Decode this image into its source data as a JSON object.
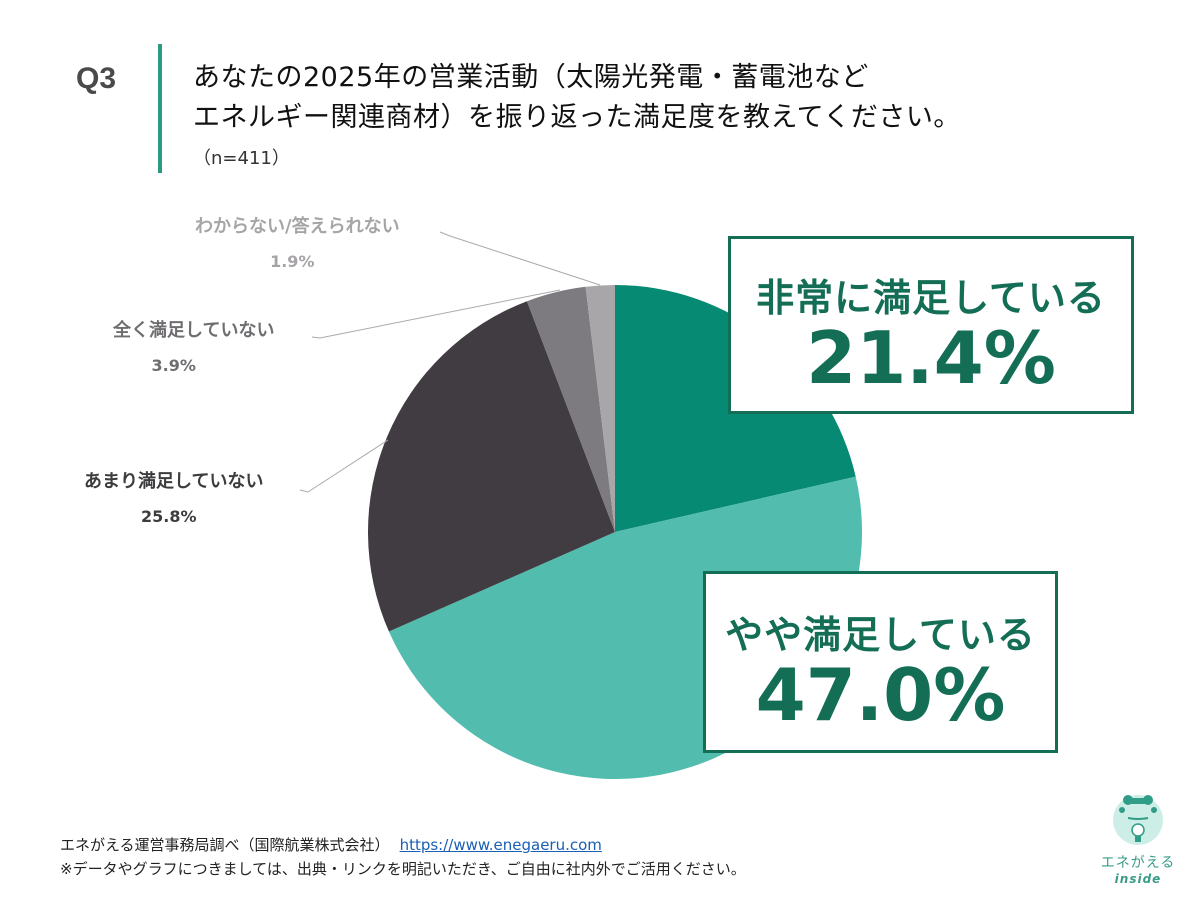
{
  "header": {
    "question_no": "Q3",
    "title_line1": "あなたの2025年の営業活動（太陽光発電・蓄電池など",
    "title_line2": "エネルギー関連商材）を振り返った満足度を教えてください。",
    "sample_size": "（n=411）"
  },
  "chart_data": {
    "type": "pie",
    "title": "あなたの2025年の営業活動（太陽光発電・蓄電池などエネルギー関連商材）を振り返った満足度を教えてください。",
    "n": 411,
    "start_angle": "12 o'clock, clockwise",
    "categories": [
      "非常に満足している",
      "やや満足している",
      "あまり満足していない",
      "全く満足していない",
      "わからない/答えられない"
    ],
    "values": [
      21.4,
      47.0,
      25.8,
      3.9,
      1.9
    ],
    "labels": [
      "21.4%",
      "47.0%",
      "25.8%",
      "3.9%",
      "1.9%"
    ],
    "colors": [
      "#068a74",
      "#52bdae",
      "#403c41",
      "#7e7b80",
      "#a9a6aa"
    ]
  },
  "callouts": {
    "very_satisfied": {
      "label": "非常に満足している",
      "value": "21.4%"
    },
    "somewhat_satisfied": {
      "label": "やや満足している",
      "value": "47.0%"
    }
  },
  "external_labels": {
    "not_very": {
      "label": "あまり満足していない",
      "value": "25.8%",
      "color": "#3d3b3e"
    },
    "not_at_all": {
      "label": "全く満足していない",
      "value": "3.9%",
      "color": "#6f6d70"
    },
    "unknown": {
      "label": "わからない/答えられない",
      "value": "1.9%",
      "color": "#a6a4a7"
    }
  },
  "footer": {
    "source": "エネがえる運営事務局調べ（国際航業株式会社）",
    "url": "https://www.enegaeru.com",
    "note": "※データやグラフにつきましては、出典・リンクを明記いただき、ご自由に社内外でご活用ください。"
  },
  "logo": {
    "brand": "エネがえる",
    "sub": "inside"
  }
}
